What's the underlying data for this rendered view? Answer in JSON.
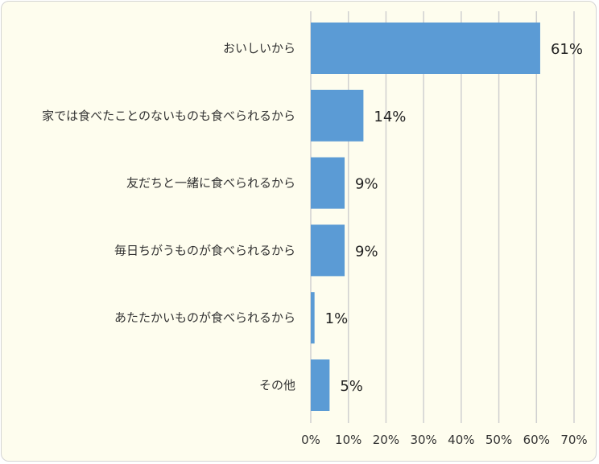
{
  "chart_data": {
    "type": "bar",
    "orientation": "horizontal",
    "categories": [
      "おいしいから",
      "家では食べたことのないものも食べられるから",
      "友だちと一緒に食べられるから",
      "毎日ちがうものが食べられるから",
      "あたたかいものが食べられるから",
      "その他"
    ],
    "values": [
      61,
      14,
      9,
      9,
      1,
      5
    ],
    "value_labels": [
      "61%",
      "14%",
      "9%",
      "9%",
      "1%",
      "5%"
    ],
    "xticks": [
      "0%",
      "10%",
      "20%",
      "30%",
      "40%",
      "50%",
      "60%",
      "70%"
    ],
    "xlim": [
      0,
      70
    ],
    "grid": "vertical",
    "bar_color": "#5b9bd5",
    "grid_color": "#d0d0d0",
    "background_color": "#fefdee"
  }
}
